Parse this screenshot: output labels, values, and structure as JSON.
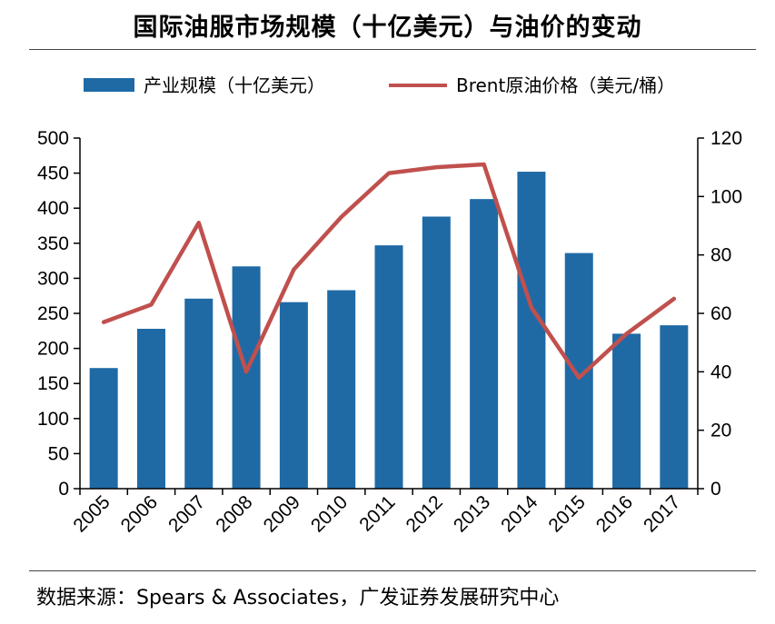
{
  "title": "国际油服市场规模（十亿美元）与油价的变动",
  "source": "数据来源：Spears & Associates，广发证券发展研究中心",
  "chart_data": {
    "type": "bar",
    "categories": [
      "2005",
      "2006",
      "2007",
      "2008",
      "2009",
      "2010",
      "2011",
      "2012",
      "2013",
      "2014",
      "2015",
      "2016",
      "2017"
    ],
    "series": [
      {
        "name": "产业规模（十亿美元）",
        "type": "bar",
        "axis": "left",
        "color": "#1F6AA5",
        "values": [
          172,
          228,
          271,
          317,
          266,
          283,
          347,
          388,
          413,
          452,
          336,
          221,
          233
        ]
      },
      {
        "name": "Brent原油价格（美元/桶）",
        "type": "line",
        "axis": "right",
        "color": "#C0504D",
        "values": [
          57,
          63,
          91,
          40,
          75,
          93,
          108,
          110,
          111,
          62,
          38,
          53,
          65
        ]
      }
    ],
    "y_left": {
      "lim": [
        0,
        500
      ],
      "ticks": [
        "0",
        "50",
        "100",
        "150",
        "200",
        "250",
        "300",
        "350",
        "400",
        "450",
        "500"
      ]
    },
    "y_right": {
      "lim": [
        0,
        120
      ],
      "ticks": [
        "0",
        "20",
        "40",
        "60",
        "80",
        "100",
        "120"
      ]
    },
    "legend_position": "top",
    "grid": false
  }
}
